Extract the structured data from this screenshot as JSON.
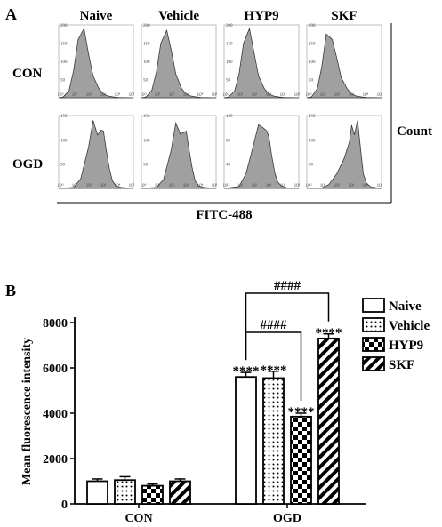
{
  "panel_a": {
    "label": "A",
    "col_headers": [
      "Naive",
      "Vehicle",
      "HYP9",
      "SKF"
    ],
    "row_labels": [
      "CON",
      "OGD"
    ],
    "ylabel": "Count",
    "xlabel": "FITC-488",
    "x_ticks": [
      "10⁰",
      "10¹",
      "10²",
      "10³",
      "10⁴",
      "10⁵"
    ],
    "y_ticks_con": [
      "0",
      "50",
      "100",
      "150",
      "200"
    ],
    "y_ticks_ogd": [
      "0",
      "50",
      "100",
      "150"
    ],
    "y_ticks_ogd_hyp9": [
      "0",
      "40",
      "80",
      "120"
    ],
    "histogram_fill": "#a0a0a0"
  },
  "panel_b": {
    "label": "B",
    "legend_position": "top-right",
    "brackets": [
      {
        "label": "####",
        "from_series": 0,
        "to_series": 3
      },
      {
        "label": "####",
        "from_series": 0,
        "to_series": 2
      }
    ]
  },
  "chart_data": [
    {
      "type": "area",
      "title": "",
      "xlabel": "FITC-488",
      "ylabel": "Count",
      "x_scale": "log",
      "xlim": [
        1,
        100000
      ],
      "rows": [
        "CON",
        "OGD"
      ],
      "columns": [
        "Naive",
        "Vehicle",
        "HYP9",
        "SKF"
      ],
      "histograms": [
        {
          "row": "CON",
          "column": "Naive",
          "ylim": [
            0,
            200
          ],
          "x": [
            1,
            2,
            5,
            10,
            20,
            50,
            100,
            200,
            500,
            1000,
            2000,
            5000,
            10000,
            100000
          ],
          "counts": [
            0,
            2,
            20,
            75,
            160,
            190,
            120,
            60,
            25,
            10,
            5,
            2,
            1,
            0
          ]
        },
        {
          "row": "CON",
          "column": "Vehicle",
          "ylim": [
            0,
            200
          ],
          "x": [
            1,
            2,
            5,
            10,
            20,
            50,
            100,
            200,
            500,
            1000,
            2000,
            5000,
            10000,
            100000
          ],
          "counts": [
            0,
            2,
            20,
            70,
            150,
            185,
            130,
            65,
            25,
            10,
            5,
            2,
            1,
            0
          ]
        },
        {
          "row": "CON",
          "column": "HYP9",
          "ylim": [
            0,
            200
          ],
          "x": [
            1,
            2,
            5,
            10,
            20,
            50,
            100,
            200,
            500,
            1000,
            2000,
            5000,
            10000,
            100000
          ],
          "counts": [
            0,
            2,
            18,
            65,
            150,
            190,
            125,
            60,
            25,
            10,
            5,
            2,
            1,
            0
          ]
        },
        {
          "row": "CON",
          "column": "SKF",
          "ylim": [
            0,
            200
          ],
          "x": [
            1,
            2,
            5,
            10,
            20,
            50,
            100,
            200,
            500,
            1000,
            2000,
            5000,
            10000,
            100000
          ],
          "counts": [
            0,
            2,
            25,
            85,
            175,
            160,
            110,
            55,
            25,
            10,
            5,
            2,
            1,
            0
          ]
        },
        {
          "row": "OGD",
          "column": "Naive",
          "ylim": [
            0,
            150
          ],
          "x": [
            1,
            10,
            30,
            100,
            200,
            400,
            700,
            1000,
            1500,
            2500,
            4000,
            7000,
            15000,
            100000
          ],
          "counts": [
            0,
            2,
            20,
            85,
            140,
            110,
            120,
            118,
            80,
            40,
            15,
            5,
            2,
            0
          ]
        },
        {
          "row": "OGD",
          "column": "Vehicle",
          "ylim": [
            0,
            150
          ],
          "x": [
            1,
            10,
            30,
            100,
            200,
            400,
            700,
            1000,
            1500,
            2500,
            4000,
            7000,
            15000,
            100000
          ],
          "counts": [
            0,
            2,
            18,
            80,
            135,
            112,
            115,
            118,
            82,
            42,
            15,
            5,
            2,
            0
          ]
        },
        {
          "row": "OGD",
          "column": "HYP9",
          "ylim": [
            0,
            120
          ],
          "x": [
            1,
            10,
            30,
            100,
            200,
            400,
            700,
            1000,
            1500,
            2500,
            4000,
            7000,
            15000,
            100000
          ],
          "counts": [
            0,
            3,
            25,
            75,
            105,
            100,
            95,
            85,
            55,
            25,
            10,
            4,
            1,
            0
          ]
        },
        {
          "row": "OGD",
          "column": "SKF",
          "ylim": [
            0,
            150
          ],
          "x": [
            1,
            10,
            30,
            100,
            300,
            700,
            1000,
            1500,
            2500,
            4000,
            6000,
            10000,
            20000,
            100000
          ],
          "counts": [
            0,
            1,
            8,
            30,
            60,
            95,
            130,
            110,
            140,
            80,
            30,
            10,
            3,
            0
          ]
        }
      ]
    },
    {
      "type": "bar",
      "title": "",
      "xlabel": "",
      "ylabel": "Mean fluorescence intensity",
      "categories": [
        "CON",
        "OGD"
      ],
      "ylim": [
        0,
        8000
      ],
      "y_ticks": [
        0,
        2000,
        4000,
        6000,
        8000
      ],
      "series": [
        {
          "name": "Naive",
          "values": [
            1000,
            5600
          ],
          "errors": [
            100,
            200
          ],
          "labels": [
            "",
            "****"
          ],
          "pattern": "empty"
        },
        {
          "name": "Vehicle",
          "values": [
            1050,
            5550
          ],
          "errors": [
            150,
            300
          ],
          "labels": [
            "",
            "****"
          ],
          "pattern": "dots"
        },
        {
          "name": "HYP9",
          "values": [
            800,
            3850
          ],
          "errors": [
            80,
            150
          ],
          "labels": [
            "",
            "****"
          ],
          "pattern": "checker"
        },
        {
          "name": "SKF",
          "values": [
            1000,
            7300
          ],
          "errors": [
            100,
            200
          ],
          "labels": [
            "",
            "****"
          ],
          "pattern": "diagonal"
        }
      ]
    }
  ]
}
